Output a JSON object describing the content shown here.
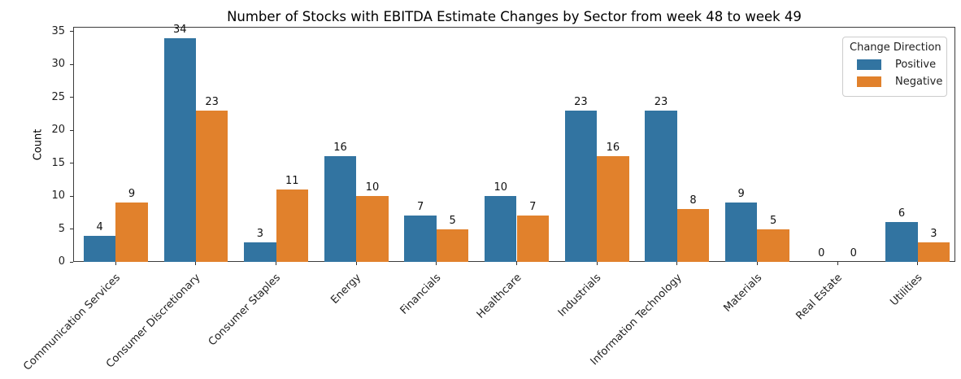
{
  "chart_data": {
    "type": "bar",
    "title": "Number of Stocks with EBITDA Estimate Changes by Sector from week 48 to week 49",
    "xlabel": "",
    "ylabel": "Count",
    "categories": [
      "Communication Services",
      "Consumer Discretionary",
      "Consumer Staples",
      "Energy",
      "Financials",
      "Healthcare",
      "Industrials",
      "Information Technology",
      "Materials",
      "Real Estate",
      "Utilities"
    ],
    "series": [
      {
        "name": "Positive",
        "color": "#3274a1",
        "values": [
          4,
          34,
          3,
          16,
          7,
          10,
          23,
          23,
          9,
          0,
          6
        ]
      },
      {
        "name": "Negative",
        "color": "#e1812c",
        "values": [
          9,
          23,
          11,
          10,
          5,
          7,
          16,
          8,
          5,
          0,
          3
        ]
      }
    ],
    "yticks": [
      0,
      5,
      10,
      15,
      20,
      25,
      30,
      35
    ],
    "ylim": [
      0,
      35.7
    ],
    "bar_value_labels": true,
    "grid": false,
    "legend_position": "upper right"
  },
  "legend": {
    "title": "Change Direction",
    "items": [
      {
        "label": "Positive",
        "color": "#3274a1"
      },
      {
        "label": "Negative",
        "color": "#e1812c"
      }
    ]
  }
}
